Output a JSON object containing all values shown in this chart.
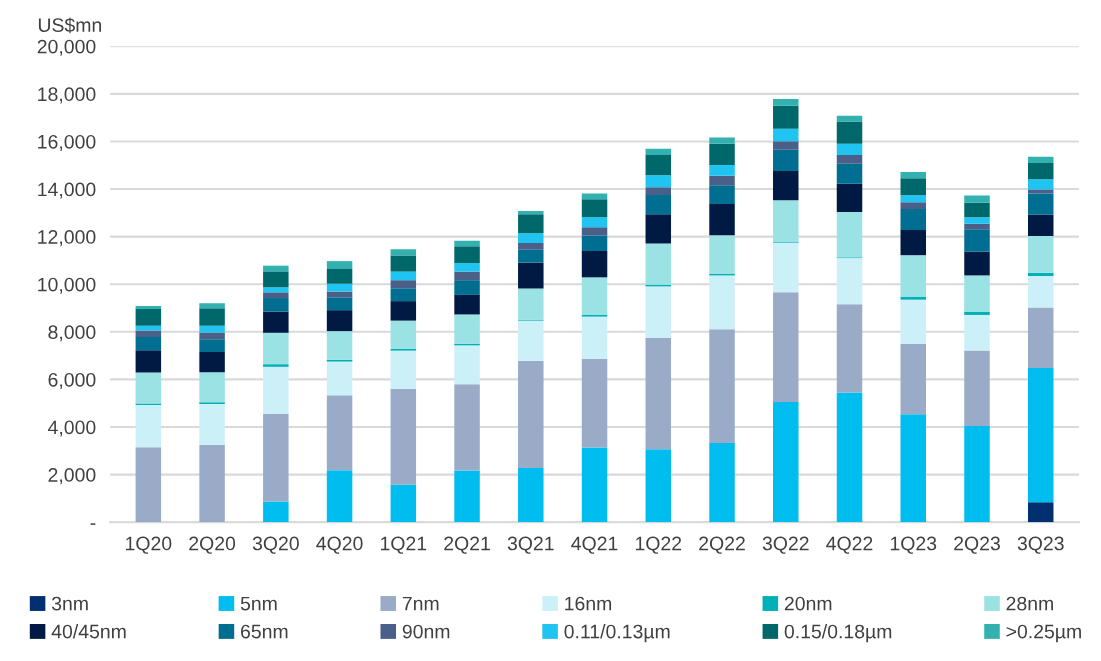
{
  "chart_data": {
    "type": "bar",
    "stacked": true,
    "ylabel": "US$mn",
    "categories": [
      "1Q20",
      "2Q20",
      "3Q20",
      "4Q20",
      "1Q21",
      "2Q21",
      "3Q21",
      "4Q21",
      "1Q22",
      "2Q22",
      "3Q22",
      "4Q22",
      "1Q23",
      "2Q23",
      "3Q23"
    ],
    "series": [
      {
        "name": "3nm",
        "color": "#003070",
        "values": [
          0,
          0,
          0,
          0,
          0,
          0,
          0,
          0,
          0,
          0,
          0,
          0,
          0,
          0,
          840
        ]
      },
      {
        "name": "5nm",
        "color": "#00bdf0",
        "values": [
          0,
          0,
          870,
          2180,
          1570,
          2170,
          2280,
          3140,
          3060,
          3330,
          5050,
          5450,
          4540,
          4040,
          5640
        ]
      },
      {
        "name": "7nm",
        "color": "#9aabc8",
        "values": [
          3150,
          3250,
          3690,
          3150,
          4040,
          3630,
          4500,
          3730,
          4680,
          4780,
          4610,
          3710,
          2950,
          3180,
          2540
        ]
      },
      {
        "name": "16nm",
        "color": "#ccf0f8",
        "values": [
          1770,
          1720,
          1970,
          1420,
          1600,
          1630,
          1690,
          1770,
          2170,
          2260,
          2070,
          1940,
          1860,
          1490,
          1330
        ]
      },
      {
        "name": "20nm",
        "color": "#00b0b9",
        "values": [
          70,
          70,
          110,
          70,
          70,
          70,
          30,
          70,
          70,
          60,
          30,
          30,
          130,
          140,
          130
        ]
      },
      {
        "name": "28nm",
        "color": "#9ae2e4",
        "values": [
          1300,
          1260,
          1320,
          1210,
          1190,
          1230,
          1320,
          1580,
          1730,
          1630,
          1770,
          1910,
          1740,
          1520,
          1550
        ]
      },
      {
        "name": "40/45nm",
        "color": "#001a44",
        "values": [
          940,
          850,
          890,
          880,
          820,
          820,
          1090,
          1110,
          1230,
          1310,
          1230,
          1180,
          1060,
          990,
          890
        ]
      },
      {
        "name": "65nm",
        "color": "#006e90",
        "values": [
          550,
          540,
          570,
          540,
          540,
          620,
          540,
          650,
          810,
          790,
          890,
          840,
          880,
          950,
          890
        ]
      },
      {
        "name": "90nm",
        "color": "#4a6089",
        "values": [
          280,
          280,
          240,
          240,
          340,
          360,
          280,
          340,
          330,
          400,
          360,
          370,
          280,
          230,
          170
        ]
      },
      {
        "name": "0.11/0.13µm",
        "color": "#1fc4f0",
        "values": [
          200,
          280,
          210,
          330,
          360,
          360,
          410,
          430,
          500,
          450,
          520,
          470,
          300,
          270,
          430
        ]
      },
      {
        "name": "0.15/0.18µm",
        "color": "#00686a",
        "values": [
          700,
          740,
          670,
          620,
          680,
          710,
          800,
          750,
          850,
          890,
          970,
          940,
          710,
          610,
          680
        ]
      },
      {
        "name": ">0.25µm",
        "color": "#33b0b0",
        "values": [
          130,
          210,
          240,
          330,
          260,
          230,
          140,
          240,
          260,
          270,
          280,
          240,
          270,
          310,
          270
        ]
      }
    ],
    "ylim": [
      0,
      20000
    ],
    "yticks": [
      {
        "value": 0,
        "label": "-"
      },
      {
        "value": 2000,
        "label": "2,000"
      },
      {
        "value": 4000,
        "label": "4,000"
      },
      {
        "value": 6000,
        "label": "6,000"
      },
      {
        "value": 8000,
        "label": "8,000"
      },
      {
        "value": 10000,
        "label": "10,000"
      },
      {
        "value": 12000,
        "label": "12,000"
      },
      {
        "value": 14000,
        "label": "14,000"
      },
      {
        "value": 16000,
        "label": "16,000"
      },
      {
        "value": 18000,
        "label": "18,000"
      },
      {
        "value": 20000,
        "label": "20,000"
      }
    ],
    "grid": "y",
    "legend": "bottom"
  }
}
